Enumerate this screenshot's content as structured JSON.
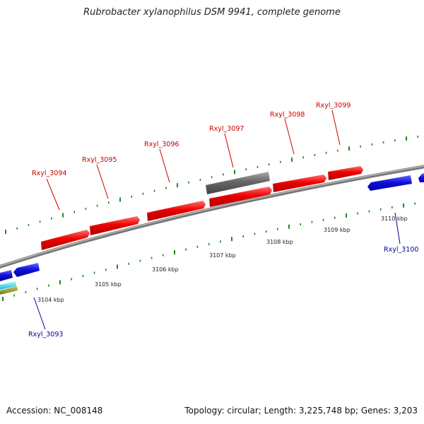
{
  "header": {
    "title": "Rubrobacter xylanophilus DSM 9941, complete genome"
  },
  "footer": {
    "accession": "Accession: NC_008148",
    "summary": "Topology: circular; Length: 3,225,748 bp; Genes: 3,203"
  },
  "colors": {
    "forward_gene": "#ee0000",
    "reverse_gene": "#1111dd",
    "pseudo_gene": "#666666",
    "backbone": "#888888",
    "ticks": "#228822",
    "label_forward": "#cc0000",
    "label_reverse": "#000099"
  },
  "ruler": {
    "major_ticks": [
      {
        "label": "3104 kbp"
      },
      {
        "label": "3105 kbp"
      },
      {
        "label": "3106 kbp"
      },
      {
        "label": "3107 kbp"
      },
      {
        "label": "3108 kbp"
      },
      {
        "label": "3109 kbp"
      },
      {
        "label": "3110 kbp"
      }
    ]
  },
  "genes": {
    "forward": [
      {
        "name": "Rxyl_3094"
      },
      {
        "name": "Rxyl_3095"
      },
      {
        "name": "Rxyl_3096"
      },
      {
        "name": "Rxyl_3097"
      },
      {
        "name": "Rxyl_3098"
      },
      {
        "name": "Rxyl_3099"
      }
    ],
    "reverse": [
      {
        "name": "Rxyl_3093"
      },
      {
        "name": "Rxyl_3100"
      }
    ]
  }
}
